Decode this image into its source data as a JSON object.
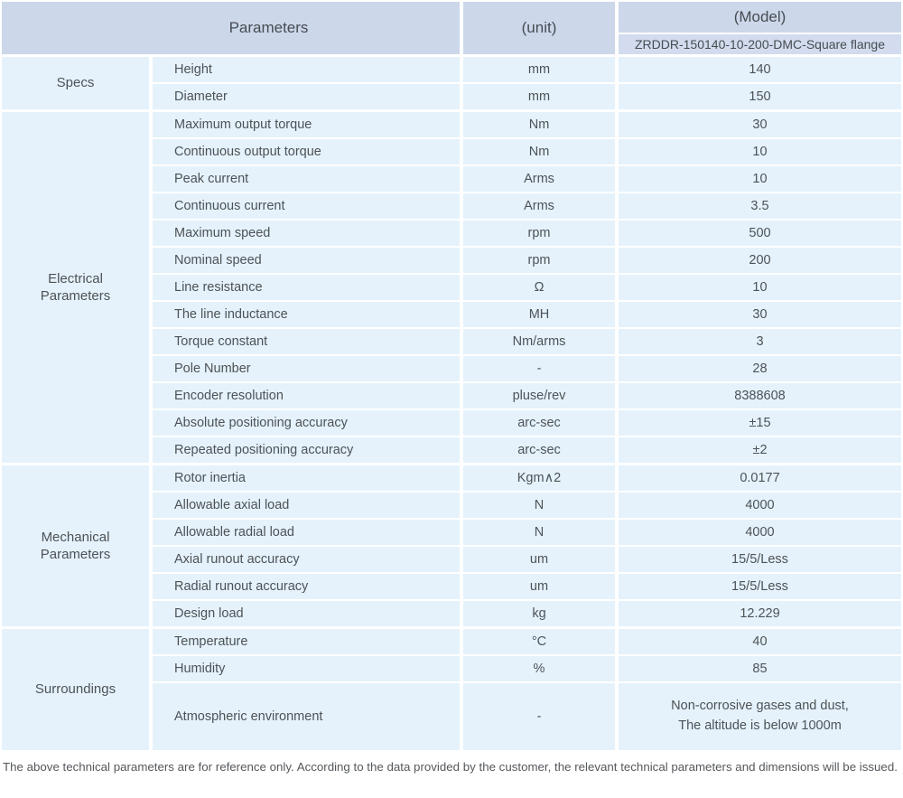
{
  "colors": {
    "header_bg": "#ccd7ea",
    "subheader_bg": "#d2dcee",
    "cell_bg": "#e5f2fb",
    "text": "#4d5257"
  },
  "header": {
    "parameters_label": "Parameters",
    "unit_label": "(unit)",
    "model_label": "(Model)",
    "model_value": "ZRDDR-150140-10-200-DMC-Square flange"
  },
  "sections": [
    {
      "label": "Specs",
      "rows": [
        {
          "name": "Height",
          "unit": "mm",
          "value": "140"
        },
        {
          "name": "Diameter",
          "unit": "mm",
          "value": "150"
        }
      ]
    },
    {
      "label": "Electrical Parameters",
      "rows": [
        {
          "name": "Maximum output torque",
          "unit": "Nm",
          "value": "30"
        },
        {
          "name": "Continuous output torque",
          "unit": "Nm",
          "value": "10"
        },
        {
          "name": "Peak current",
          "unit": "Arms",
          "value": "10"
        },
        {
          "name": "Continuous current",
          "unit": "Arms",
          "value": "3.5"
        },
        {
          "name": "Maximum speed",
          "unit": "rpm",
          "value": "500"
        },
        {
          "name": "Nominal speed",
          "unit": "rpm",
          "value": "200"
        },
        {
          "name": "Line resistance",
          "unit": "Ω",
          "value": "10"
        },
        {
          "name": "The line inductance",
          "unit": "MH",
          "value": "30"
        },
        {
          "name": "Torque constant",
          "unit": "Nm/arms",
          "value": "3"
        },
        {
          "name": "Pole Number",
          "unit": "-",
          "value": "28"
        },
        {
          "name": "Encoder resolution",
          "unit": "pluse/rev",
          "value": "8388608"
        },
        {
          "name": "Absolute positioning accuracy",
          "unit": "arc-sec",
          "value": "±15"
        },
        {
          "name": "Repeated positioning accuracy",
          "unit": "arc-sec",
          "value": "±2"
        }
      ]
    },
    {
      "label": "Mechanical Parameters",
      "rows": [
        {
          "name": "Rotor inertia",
          "unit": "Kgm∧2",
          "value": "0.0177"
        },
        {
          "name": "Allowable axial load",
          "unit": "N",
          "value": "4000"
        },
        {
          "name": "Allowable radial load",
          "unit": "N",
          "value": "4000"
        },
        {
          "name": "Axial runout accuracy",
          "unit": "um",
          "value": "15/5/Less"
        },
        {
          "name": "Radial runout accuracy",
          "unit": "um",
          "value": "15/5/Less"
        },
        {
          "name": "Design load",
          "unit": "kg",
          "value": "12.229"
        }
      ]
    },
    {
      "label": "Surroundings",
      "rows": [
        {
          "name": "Temperature",
          "unit": "°C",
          "value": "40"
        },
        {
          "name": "Humidity",
          "unit": "%",
          "value": "85"
        },
        {
          "name": "Atmospheric environment",
          "unit": "-",
          "value_line1": "Non-corrosive gases and dust,",
          "value_line2": "The altitude is below 1000m"
        }
      ]
    }
  ],
  "footer": {
    "note": "The above technical parameters are for reference only. According to the data provided by the customer, the relevant technical parameters and dimensions will be issued."
  }
}
